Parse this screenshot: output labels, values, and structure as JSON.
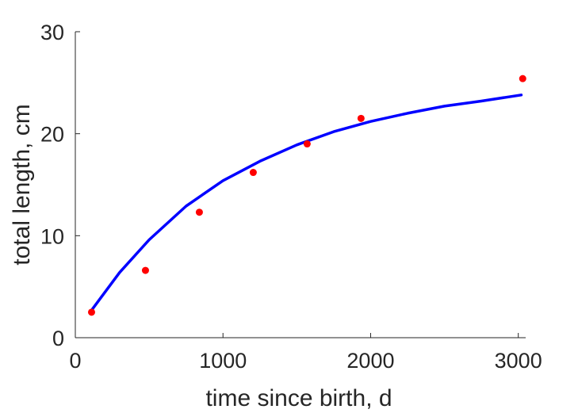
{
  "chart_data": {
    "type": "scatter",
    "xlabel": "time since birth, d",
    "ylabel": "total length, cm",
    "xlim": [
      0,
      3050
    ],
    "ylim": [
      0,
      30
    ],
    "x_ticks": [
      0,
      1000,
      2000,
      3000
    ],
    "y_ticks": [
      0,
      10,
      20,
      30
    ],
    "grid": false,
    "legend": "none",
    "series": [
      {
        "kind": "points",
        "color": "#ff0000",
        "x": [
          110,
          475,
          840,
          1205,
          1570,
          1935,
          3030
        ],
        "y": [
          2.5,
          6.6,
          12.3,
          16.2,
          19.0,
          21.5,
          25.4
        ]
      },
      {
        "kind": "line",
        "color": "#0000ff",
        "x": [
          110,
          300,
          500,
          750,
          1000,
          1250,
          1500,
          1750,
          2000,
          2250,
          2500,
          2750,
          3020
        ],
        "y": [
          2.7,
          6.4,
          9.6,
          12.9,
          15.4,
          17.3,
          18.9,
          20.2,
          21.2,
          22.0,
          22.7,
          23.2,
          23.8
        ]
      }
    ]
  }
}
